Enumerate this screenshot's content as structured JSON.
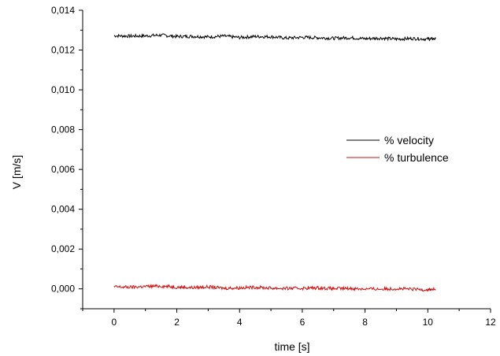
{
  "chart_data": {
    "type": "line",
    "title": "",
    "xlabel": "time [s]",
    "ylabel": "V [m/s]",
    "xlim": [
      -1,
      12
    ],
    "ylim": [
      -0.001,
      0.014
    ],
    "x_ticks": [
      0,
      2,
      4,
      6,
      8,
      10,
      12
    ],
    "x_tick_labels": [
      "0",
      "2",
      "4",
      "6",
      "8",
      "10",
      "12"
    ],
    "y_ticks": [
      0.0,
      0.002,
      0.004,
      0.006,
      0.008,
      0.01,
      0.012,
      0.014
    ],
    "y_tick_labels": [
      "0,000",
      "0,002",
      "0,004",
      "0,006",
      "0,008",
      "0,010",
      "0,012",
      "0,014"
    ],
    "grid": false,
    "legend_position": "center-right",
    "series": [
      {
        "name": "% velocity",
        "color": "#000000",
        "x": [
          0,
          0.5,
          1,
          1.5,
          2,
          2.5,
          3,
          3.5,
          4,
          4.5,
          5,
          5.5,
          6,
          6.5,
          7,
          7.5,
          8,
          8.5,
          9,
          9.5,
          10,
          10.25
        ],
        "values": [
          0.01272,
          0.0127,
          0.01271,
          0.01275,
          0.01268,
          0.01269,
          0.01266,
          0.0127,
          0.01263,
          0.01268,
          0.01267,
          0.0126,
          0.01264,
          0.01262,
          0.01259,
          0.01262,
          0.01257,
          0.0126,
          0.01255,
          0.01258,
          0.01255,
          0.01257
        ]
      },
      {
        "name": "% turbulence",
        "color": "#d01010",
        "x": [
          0,
          0.5,
          1,
          1.5,
          2,
          2.5,
          3,
          3.5,
          4,
          4.5,
          5,
          5.5,
          6,
          6.5,
          7,
          7.5,
          8,
          8.5,
          9,
          9.5,
          10,
          10.25
        ],
        "values": [
          0.0001,
          8e-05,
          0.00012,
          0.00014,
          9e-05,
          6e-05,
          0.0001,
          3e-05,
          5e-05,
          8e-05,
          4e-05,
          2e-05,
          3e-05,
          5e-05,
          1e-05,
          2e-05,
          0.0,
          -1e-05,
          1e-05,
          -2e-05,
          -4e-05,
          -3e-05
        ]
      }
    ]
  }
}
